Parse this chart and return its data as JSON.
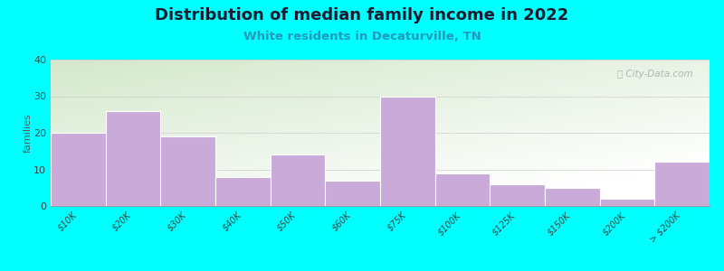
{
  "title": "Distribution of median family income in 2022",
  "subtitle": "White residents in Decaturville, TN",
  "categories": [
    "$10K",
    "$20K",
    "$30K",
    "$40K",
    "$50K",
    "$60K",
    "$75K",
    "$100K",
    "$125K",
    "$150K",
    "$200K",
    "> $200K"
  ],
  "values": [
    20,
    26,
    19,
    8,
    14,
    7,
    30,
    9,
    6,
    5,
    2,
    12
  ],
  "bar_color": "#c9aad8",
  "background_color": "#00ffff",
  "plot_bg_top_left": "#d4e8cc",
  "plot_bg_bottom_right": "#f8f8f8",
  "title_color": "#1a1a2e",
  "subtitle_color": "#2299bb",
  "ylabel": "families",
  "ylim": [
    0,
    40
  ],
  "yticks": [
    0,
    10,
    20,
    30,
    40
  ],
  "grid_color": "#cccccc",
  "watermark": "City-Data.com",
  "title_fontsize": 13,
  "subtitle_fontsize": 9.5,
  "tick_fontsize": 7,
  "ylabel_fontsize": 8
}
